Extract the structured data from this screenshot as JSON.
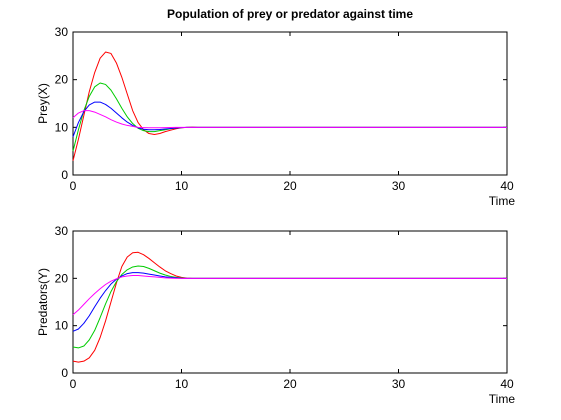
{
  "figure": {
    "title": "Population of prey or predator against time"
  },
  "chart_data": [
    {
      "type": "line",
      "title": "Population of prey or predator against time",
      "xlabel": "Time",
      "ylabel": "Prey(X)",
      "xlim": [
        0,
        40
      ],
      "ylim": [
        0,
        30
      ],
      "xticks": [
        "0",
        "10",
        "20",
        "30",
        "40"
      ],
      "yticks": [
        "0",
        "10",
        "20",
        "30"
      ],
      "grid": false,
      "series": [
        {
          "color": "#ff0000",
          "x": [
            0,
            0.5,
            1,
            1.5,
            2,
            2.5,
            3,
            3.5,
            4,
            4.5,
            5,
            5.5,
            6,
            6.5,
            7,
            7.5,
            8,
            8.5,
            9,
            9.5,
            10,
            10.5,
            11,
            11.5,
            12,
            40
          ],
          "y": [
            3,
            7.5,
            12.5,
            17.5,
            21.5,
            24.5,
            25.8,
            25.5,
            23.5,
            20.5,
            17,
            13.5,
            11,
            9.5,
            8.7,
            8.5,
            8.7,
            9.1,
            9.4,
            9.7,
            9.9,
            10,
            10.05,
            10,
            10,
            10
          ]
        },
        {
          "color": "#00cc00",
          "x": [
            0,
            0.5,
            1,
            1.5,
            2,
            2.5,
            3,
            3.5,
            4,
            4.5,
            5,
            5.5,
            6,
            6.5,
            7,
            7.5,
            8,
            8.5,
            9,
            9.5,
            10,
            10.5,
            11,
            11.5,
            12,
            40
          ],
          "y": [
            5,
            9.5,
            13.5,
            16.5,
            18.5,
            19.3,
            19,
            17.8,
            16,
            14,
            12.2,
            10.8,
            9.8,
            9.3,
            9.1,
            9.1,
            9.3,
            9.5,
            9.7,
            9.85,
            9.95,
            10,
            10,
            10,
            10,
            10
          ]
        },
        {
          "color": "#0000ff",
          "x": [
            0,
            0.5,
            1,
            1.5,
            2,
            2.5,
            3,
            3.5,
            4,
            4.5,
            5,
            5.5,
            6,
            6.5,
            7,
            7.5,
            8,
            8.5,
            9,
            9.5,
            10,
            10.5,
            11,
            11.5,
            12,
            40
          ],
          "y": [
            8,
            11,
            13.3,
            14.7,
            15.3,
            15.3,
            14.8,
            14,
            13,
            12,
            11.1,
            10.4,
            9.9,
            9.6,
            9.5,
            9.5,
            9.55,
            9.65,
            9.75,
            9.85,
            9.95,
            10,
            10,
            10,
            10,
            10
          ]
        },
        {
          "color": "#ff00ff",
          "x": [
            0,
            0.5,
            1,
            1.5,
            2,
            2.5,
            3,
            3.5,
            4,
            4.5,
            5,
            5.5,
            6,
            6.5,
            7,
            7.5,
            8,
            8.5,
            9,
            9.5,
            10,
            10.5,
            11,
            11.5,
            12,
            40
          ],
          "y": [
            12,
            13,
            13.5,
            13.5,
            13.2,
            12.7,
            12.2,
            11.6,
            11.1,
            10.7,
            10.4,
            10.2,
            10,
            9.95,
            9.9,
            9.9,
            9.92,
            9.95,
            9.97,
            10,
            10,
            10,
            10,
            10,
            10,
            10
          ]
        }
      ]
    },
    {
      "type": "line",
      "title": "",
      "xlabel": "Time",
      "ylabel": "Predators(Y)",
      "xlim": [
        0,
        40
      ],
      "ylim": [
        0,
        30
      ],
      "xticks": [
        "0",
        "10",
        "20",
        "30",
        "40"
      ],
      "yticks": [
        "0",
        "10",
        "20",
        "30"
      ],
      "grid": false,
      "series": [
        {
          "color": "#ff0000",
          "x": [
            0,
            0.5,
            1,
            1.5,
            2,
            2.5,
            3,
            3.5,
            4,
            4.5,
            5,
            5.5,
            6,
            6.5,
            7,
            7.5,
            8,
            8.5,
            9,
            9.5,
            10,
            10.5,
            11,
            11.5,
            12,
            40
          ],
          "y": [
            2.5,
            2.3,
            2.5,
            3.2,
            4.8,
            7.5,
            11,
            15,
            19,
            22.5,
            24.5,
            25.4,
            25.5,
            25,
            24.2,
            23.3,
            22.4,
            21.6,
            21,
            20.5,
            20.2,
            20.05,
            20,
            20,
            20,
            20
          ]
        },
        {
          "color": "#00cc00",
          "x": [
            0,
            0.5,
            1,
            1.5,
            2,
            2.5,
            3,
            3.5,
            4,
            4.5,
            5,
            5.5,
            6,
            6.5,
            7,
            7.5,
            8,
            8.5,
            9,
            9.5,
            10,
            10.5,
            11,
            11.5,
            12,
            40
          ],
          "y": [
            5.5,
            5.3,
            5.7,
            7,
            9,
            11.7,
            14.6,
            17.2,
            19.3,
            20.8,
            21.8,
            22.4,
            22.6,
            22.5,
            22.1,
            21.6,
            21.1,
            20.7,
            20.4,
            20.2,
            20.1,
            20,
            20,
            20,
            20,
            20
          ]
        },
        {
          "color": "#0000ff",
          "x": [
            0,
            0.5,
            1,
            1.5,
            2,
            2.5,
            3,
            3.5,
            4,
            4.5,
            5,
            5.5,
            6,
            6.5,
            7,
            7.5,
            8,
            8.5,
            9,
            9.5,
            10,
            10.5,
            11,
            11.5,
            12,
            40
          ],
          "y": [
            8.8,
            9.3,
            10.5,
            12.1,
            14,
            15.8,
            17.4,
            18.8,
            19.8,
            20.5,
            21,
            21.2,
            21.2,
            21.1,
            20.9,
            20.7,
            20.5,
            20.3,
            20.2,
            20.1,
            20,
            20,
            20,
            20,
            20,
            20
          ]
        },
        {
          "color": "#ff00ff",
          "x": [
            0,
            0.5,
            1,
            1.5,
            2,
            2.5,
            3,
            3.5,
            4,
            4.5,
            5,
            5.5,
            6,
            6.5,
            7,
            7.5,
            8,
            8.5,
            9,
            9.5,
            10,
            10.5,
            11,
            11.5,
            12,
            40
          ],
          "y": [
            12.3,
            13.3,
            14.5,
            15.7,
            16.8,
            17.8,
            18.7,
            19.4,
            19.9,
            20.3,
            20.5,
            20.6,
            20.6,
            20.5,
            20.4,
            20.3,
            20.2,
            20.1,
            20.05,
            20,
            20,
            20,
            20,
            20,
            20,
            20
          ]
        }
      ]
    }
  ]
}
